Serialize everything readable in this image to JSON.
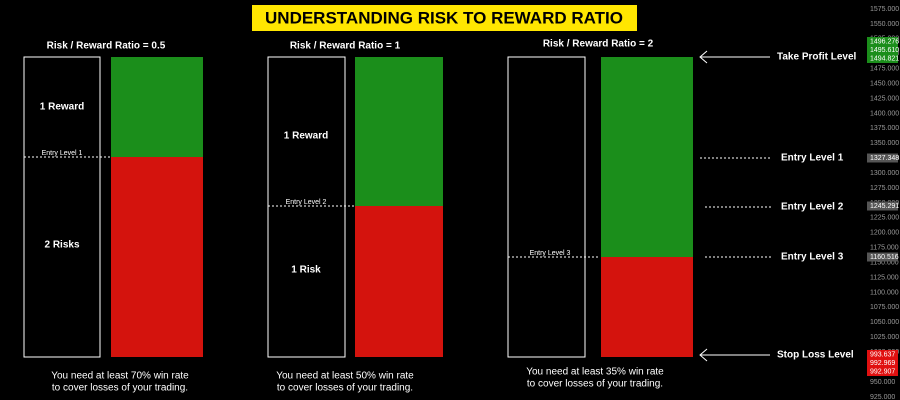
{
  "title": "UNDERSTANDING RISK TO REWARD RATIO",
  "panels": [
    {
      "heading": "Risk / Reward Ratio = 0.5",
      "reward": "1 Reward",
      "risk": "2 Risks",
      "entry": "Entry Level 1",
      "note": [
        "You need at least 70% win rate",
        "to cover losses of your trading."
      ]
    },
    {
      "heading": "Risk / Reward Ratio = 1",
      "reward": "1 Reward",
      "risk": "1 Risk",
      "entry": "Entry Level 2",
      "note": [
        "You need at least 50% win rate",
        "to cover losses of your trading."
      ]
    },
    {
      "heading": "Risk / Reward Ratio = 2",
      "entry": "Entry Level 3",
      "note": [
        "You need at least 35% win rate",
        "to cover losses of your trading."
      ]
    }
  ],
  "levels": [
    "Take Profit Level",
    "Entry Level 1",
    "Entry Level 2",
    "Entry Level 3",
    "Stop Loss Level"
  ],
  "price_axis": {
    "ticks": [
      "1575.000",
      "1550.000",
      "1525.000",
      "1500.000",
      "1475.000",
      "1450.000",
      "1425.000",
      "1400.000",
      "1375.000",
      "1350.000",
      "1325.000",
      "1300.000",
      "1275.000",
      "1250.000",
      "1225.000",
      "1200.000",
      "1175.000",
      "1150.000",
      "1125.000",
      "1100.000",
      "1075.000",
      "1050.000",
      "1025.000",
      "1000.000",
      "975.000",
      "950.000",
      "925.000"
    ],
    "take_profit_tags": [
      "1496.276",
      "1495.610",
      "1494.821"
    ],
    "entry_tags": [
      "1327.348",
      "1245.291",
      "1160.516"
    ],
    "stop_loss_tags": [
      "993.637",
      "992.969",
      "992.907"
    ]
  }
}
